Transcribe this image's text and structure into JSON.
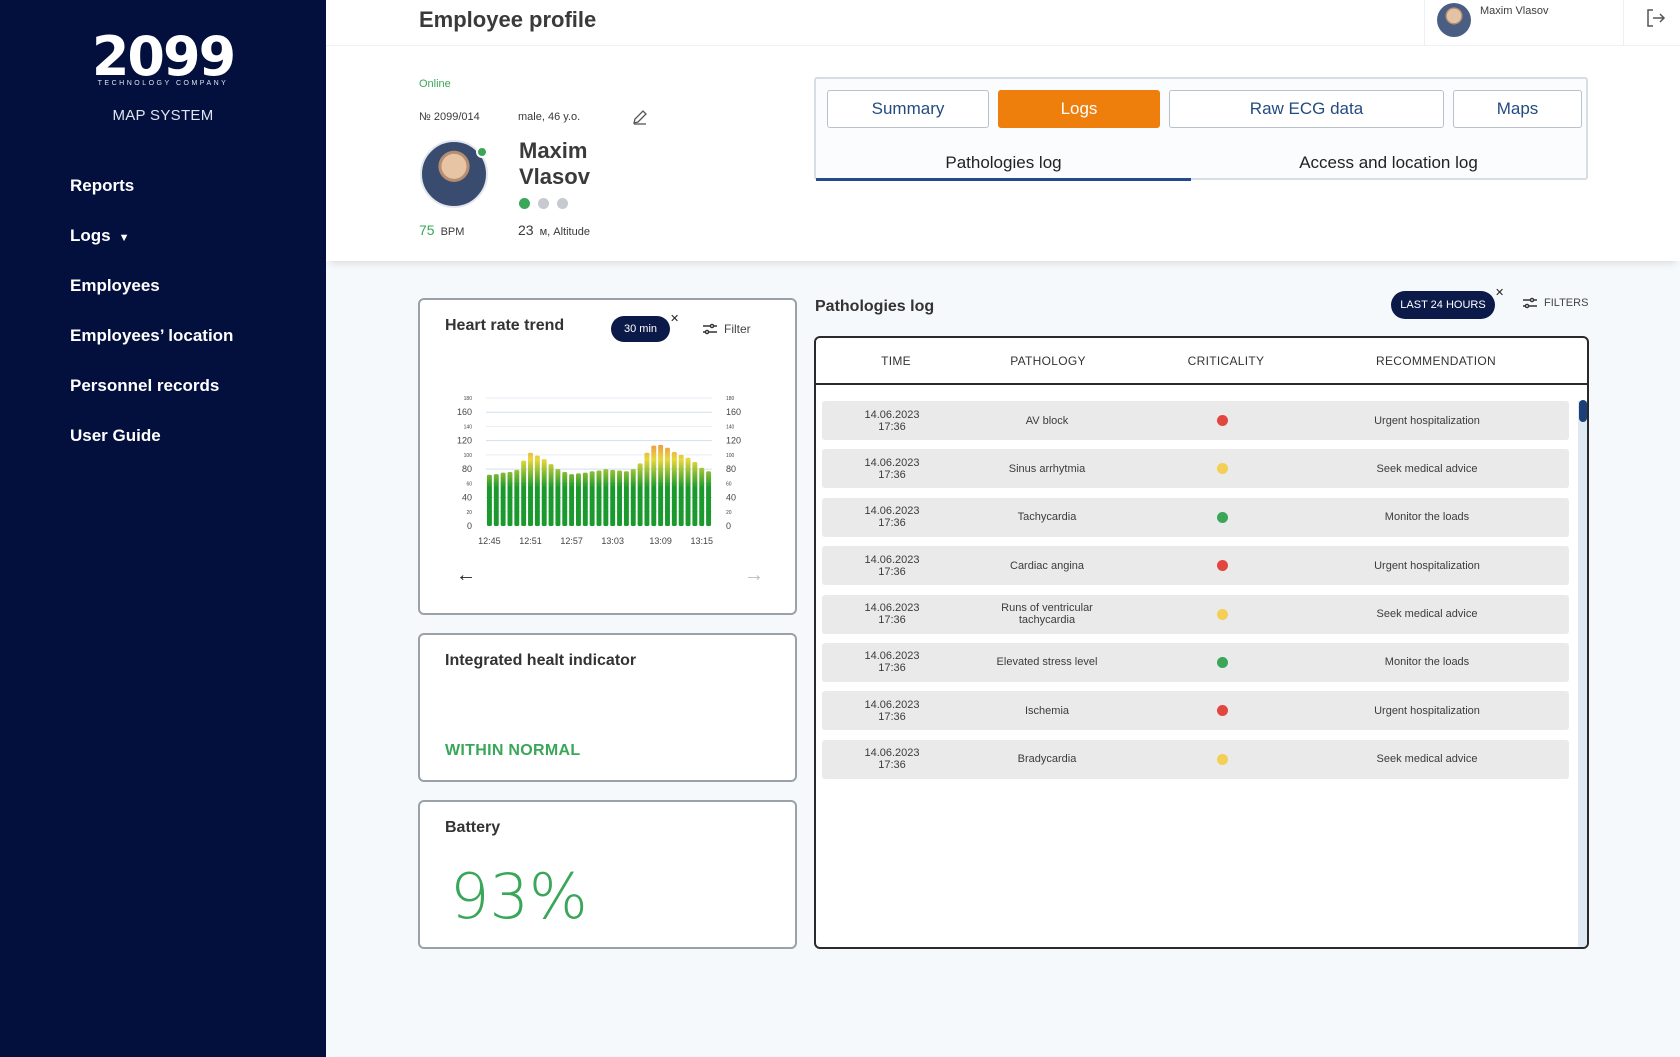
{
  "brand": {
    "logo_number": "2099",
    "logo_tagline": "TECHNOLOGY COMPANY",
    "system_name": "MAP SYSTEM"
  },
  "sidebar": {
    "items": [
      {
        "label": "Reports"
      },
      {
        "label": "Logs"
      },
      {
        "label": "Employees"
      },
      {
        "label": "Employees’ location"
      },
      {
        "label": "Personnel records"
      },
      {
        "label": "User Guide"
      }
    ]
  },
  "header": {
    "title": "Employee profile",
    "user_name": "Maxim Vlasov"
  },
  "profile": {
    "status": "Online",
    "number": "№ 2099/014",
    "meta": "male, 46 y.o.",
    "name": "Maxim Vlasov",
    "bpm_value": "75",
    "bpm_unit": "BPM",
    "altitude_value": "23",
    "altitude_unit": "м, Altitude"
  },
  "tabs": {
    "items": [
      {
        "label": "Summary"
      },
      {
        "label": "Logs"
      },
      {
        "label": "Raw ECG data"
      },
      {
        "label": "Maps"
      }
    ],
    "active": "Logs",
    "subtabs": [
      {
        "label": "Pathologies log"
      },
      {
        "label": "Access and location log"
      }
    ]
  },
  "heart_card": {
    "title": "Heart rate trend",
    "range": "30 min",
    "filter": "Filter"
  },
  "health_card": {
    "title": "Integrated healt indicator",
    "status": "WITHIN NORMAL"
  },
  "battery_card": {
    "title": "Battery",
    "value": "93%"
  },
  "chart_data": {
    "type": "bar",
    "title": "Heart rate trend",
    "x_tick_labels": [
      "12:45",
      "12:51",
      "12:57",
      "13:03",
      "13:09",
      "13:15"
    ],
    "y_ticks_major": [
      0,
      40,
      80,
      120,
      160
    ],
    "y_ticks_minor": [
      20,
      60,
      100,
      140,
      180
    ],
    "ylim": [
      0,
      180
    ],
    "values": [
      72,
      73,
      75,
      76,
      79,
      92,
      103,
      99,
      94,
      87,
      80,
      76,
      73,
      74,
      75,
      77,
      78,
      80,
      79,
      78,
      77,
      80,
      88,
      103,
      113,
      114,
      110,
      104,
      100,
      96,
      90,
      82,
      77
    ],
    "colors": {
      "low": "#1a9a2c",
      "mid": "#e8d83c",
      "high": "#ee8a4a"
    }
  },
  "log": {
    "title": "Pathologies log",
    "range": "LAST 24 HOURS",
    "filters": "FILTERS",
    "columns": [
      "TIME",
      "PATHOLOGY",
      "CRITICALITY",
      "RECOMMENDATION"
    ],
    "rows": [
      {
        "date": "14.06.2023",
        "time": "17:36",
        "pathology": "AV block",
        "criticality": "#e2473f",
        "recommendation": "Urgent hospitalization"
      },
      {
        "date": "14.06.2023",
        "time": "17:36",
        "pathology": "Sinus arrhytmia",
        "criticality": "#f4cf55",
        "recommendation": "Seek medical advice"
      },
      {
        "date": "14.06.2023",
        "time": "17:36",
        "pathology": "Tachycardia",
        "criticality": "#3aa65a",
        "recommendation": "Monitor the loads"
      },
      {
        "date": "14.06.2023",
        "time": "17:36",
        "pathology": "Cardiac angina",
        "criticality": "#e2473f",
        "recommendation": "Urgent hospitalization"
      },
      {
        "date": "14.06.2023",
        "time": "17:36",
        "pathology": "Runs of ventricular tachycardia",
        "criticality": "#f4cf55",
        "recommendation": "Seek medical advice"
      },
      {
        "date": "14.06.2023",
        "time": "17:36",
        "pathology": "Elevated stress level",
        "criticality": "#3aa65a",
        "recommendation": "Monitor the loads"
      },
      {
        "date": "14.06.2023",
        "time": "17:36",
        "pathology": "Ischemia",
        "criticality": "#e2473f",
        "recommendation": "Urgent hospitalization"
      },
      {
        "date": "14.06.2023",
        "time": "17:36",
        "pathology": "Bradycardia",
        "criticality": "#f4cf55",
        "recommendation": "Seek medical advice"
      }
    ]
  }
}
